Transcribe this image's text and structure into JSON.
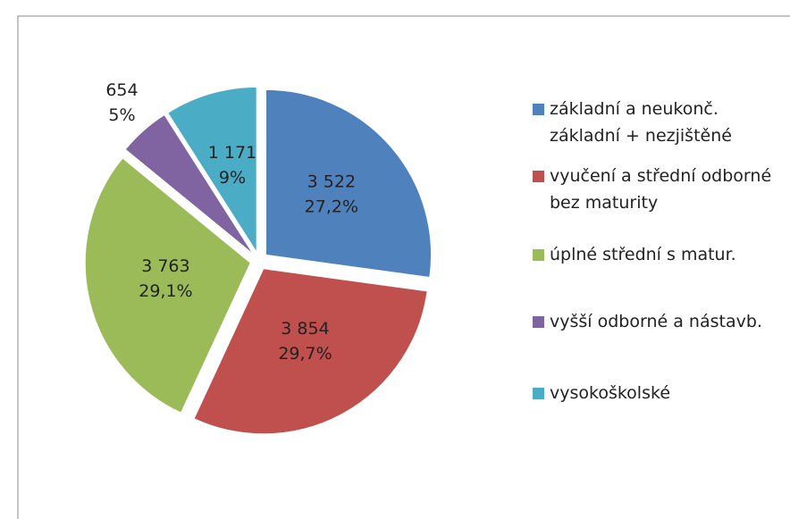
{
  "chart_data": {
    "type": "pie",
    "categories": [
      "základní a neukonč. základní + nezjištěné",
      "vyučení a střední odborné bez maturity",
      "úplné střední s matur.",
      "vyšší odborné a nástavb.",
      "vysokoškolské"
    ],
    "values": [
      3522,
      3854,
      3763,
      654,
      1171
    ],
    "value_labels": [
      "3 522",
      "3 854",
      "3 763",
      "654",
      "1 171"
    ],
    "percent_labels": [
      "27,2%",
      "29,7%",
      "29,1%",
      "5%",
      "9%"
    ],
    "colors": [
      "#4f81bd",
      "#c0504d",
      "#9bbb59",
      "#8064a2",
      "#4bacc6"
    ],
    "legend": "right"
  }
}
